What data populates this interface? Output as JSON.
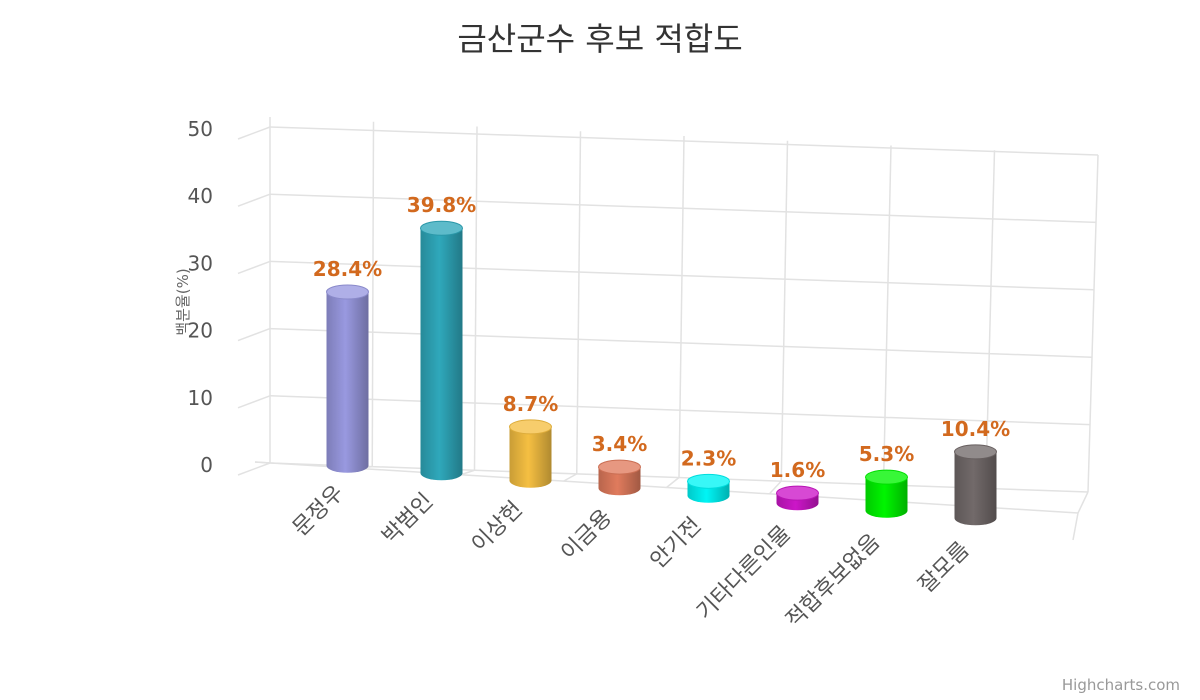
{
  "chart_data": {
    "type": "bar",
    "title": "금산군수 후보 적합도",
    "ylabel": "백분율(%)",
    "ylim": [
      0,
      50
    ],
    "yticks": [
      0,
      10,
      20,
      30,
      40,
      50
    ],
    "categories": [
      "문정우",
      "박범인",
      "이상헌",
      "이금용",
      "안기전",
      "기타다른인물",
      "적합후보없음",
      "잘모름"
    ],
    "values": [
      28.4,
      39.8,
      8.7,
      3.4,
      2.3,
      1.6,
      5.3,
      10.4
    ],
    "data_labels": [
      "28.4%",
      "39.8%",
      "8.7%",
      "3.4%",
      "2.3%",
      "1.6%",
      "5.3%",
      "10.4%"
    ],
    "colors": [
      "#9999e0",
      "#2fa8bb",
      "#f5bf42",
      "#e07b5d",
      "#00f5f5",
      "#cc16c8",
      "#00f500",
      "#726a6a"
    ],
    "grid": true,
    "legend": "none",
    "style": "3d-cylinder"
  },
  "credit": "Highcharts.com"
}
